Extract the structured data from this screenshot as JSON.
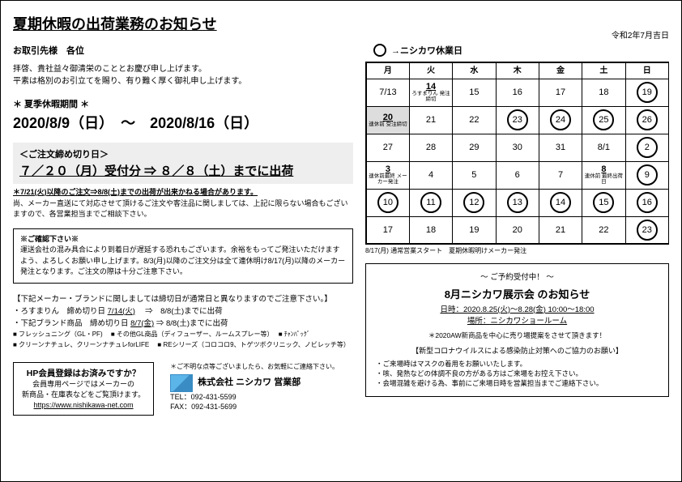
{
  "header": {
    "title": "夏期休暇の出荷業務のお知らせ",
    "date_top": "令和2年7月吉日"
  },
  "left": {
    "addressee": "お取引先様　各位",
    "greeting_l1": "拝啓、貴社益々御清栄のこととお慶び申し上げます。",
    "greeting_l2": "平素は格別のお引立てを賜り、有り難く厚く御礼申し上げます。",
    "closure_label": "＊  夏季休暇期間  ＊",
    "closure_range": "2020/8/9（日）　～　2020/8/16（日）",
    "deadline_title": "＜ご注文締め切り日＞",
    "deadline_line": "７／２０（月）受付分 ⇒ ８／８（土）までに出荷",
    "deadline_note_ul": "＊7/21(火)以降のご注文⇒8/8(土)までの出荷が出来かねる場合があります。",
    "deadline_note_rest": "尚、メーカー直送にて対応させて頂けるご注文や客注品に関しましては、上記に限らない場合もございますので、各営業担当までご相談下さい。",
    "confirm_title": "※ご確認下さい※",
    "confirm_body": "運送会社の混み具合により到着日が遅延する恐れもございます。余裕をもってご発注いただけますよう、よろしくお願い申し上げます。8/3(月)以降のご注文分は全て連休明け8/17(月)以降のメーカー発注となります。ご注文の際は十分ご注意下さい。",
    "brand_lead": "【下記メーカー・ブランドに関しましては締切日が通常日と異なりますのでご注意下さい。】",
    "brand_l1_a": "・ろすまりん　締め切り日 ",
    "brand_l1_b": "7/14(火)",
    "brand_l1_c": "　⇒　8/8(土)までに出荷",
    "brand_l2_a": "・下記ブランド商品　締め切り日 ",
    "brand_l2_b": "8/7(金)",
    "brand_l2_c": " ⇒ 8/8(土)までに出荷",
    "brand_s1": "■ フレッシュニング（GL・PF)　 ■ その他GL商品（ディフューザー、ルームスプレー等）　 ■ ﾁｬﾝﾊﾟｯｸﾞ",
    "brand_s2": "■ クリーンナチュレ、クリーンナチュレforLIFE　 ■ REシリーズ（コロコロ9、トゲツボクリニック、ノビレッチ等）",
    "hp_title": "HP会員登録はお済みですか？",
    "hp_body1": "会員専用ページではメーカーの",
    "hp_body2": "新商品・在庫表などをご覧頂けます。",
    "hp_url": "https://www.nishikawa-net.com",
    "sign_note": "＊ご不明な点等ございましたら、お気軽にご連絡下さい。",
    "sign_company": "株式会社 ニシカワ 営業部",
    "sign_tel": "TEL：092-431-5599",
    "sign_fax": "FAX：092-431-5699"
  },
  "right": {
    "legend": "→ニシカワ休業日",
    "weekdays": [
      "月",
      "火",
      "水",
      "木",
      "金",
      "土",
      "日"
    ],
    "rows": [
      [
        {
          "n": "7/13"
        },
        {
          "n": "14",
          "sub": "ろすまりん\n発注締切",
          "ul": true
        },
        {
          "n": "15"
        },
        {
          "n": "16"
        },
        {
          "n": "17"
        },
        {
          "n": "18"
        },
        {
          "n": "19",
          "circle": true
        }
      ],
      [
        {
          "n": "20",
          "sub": "連休前\n受注締切",
          "ul": true,
          "shade": true
        },
        {
          "n": "21"
        },
        {
          "n": "22"
        },
        {
          "n": "23",
          "circle": true
        },
        {
          "n": "24",
          "circle": true
        },
        {
          "n": "25",
          "circle": true
        },
        {
          "n": "26",
          "circle": true
        }
      ],
      [
        {
          "n": "27"
        },
        {
          "n": "28"
        },
        {
          "n": "29"
        },
        {
          "n": "30"
        },
        {
          "n": "31"
        },
        {
          "n": "8/1"
        },
        {
          "n": "2",
          "circle": true
        }
      ],
      [
        {
          "n": "3",
          "sub": "連休前最終\nメーカー発注",
          "ul": true
        },
        {
          "n": "4"
        },
        {
          "n": "5"
        },
        {
          "n": "6"
        },
        {
          "n": "7"
        },
        {
          "n": "8",
          "sub": "連休前\n最終出荷日",
          "ul": true
        },
        {
          "n": "9",
          "circle": true
        }
      ],
      [
        {
          "n": "10",
          "circle": true
        },
        {
          "n": "11",
          "circle": true
        },
        {
          "n": "12",
          "circle": true
        },
        {
          "n": "13",
          "circle": true
        },
        {
          "n": "14",
          "circle": true
        },
        {
          "n": "15",
          "circle": true
        },
        {
          "n": "16",
          "circle": true
        }
      ],
      [
        {
          "n": "17"
        },
        {
          "n": "18"
        },
        {
          "n": "19"
        },
        {
          "n": "20"
        },
        {
          "n": "21"
        },
        {
          "n": "22"
        },
        {
          "n": "23",
          "circle": true
        }
      ]
    ],
    "cal_note": "8/17(月) 通常営業スタート　夏期休暇明けメーカー発注",
    "event_head": "～ ご予約受付中！ ～",
    "event_title": "8月ニシカワ展示会 のお知らせ",
    "event_date": "日時：2020.8.25(火)～8.28(金) 10:00～18:00",
    "event_place": "場所：ニシカワショールーム",
    "event_note": "＊2020AW新商品を中心に売り場提案をさせて頂きます！",
    "covid_title": "【新型コロナウイルスによる感染防止対策へのご協力のお願い】",
    "covid_b1": "・ご来場時はマスクの着用をお願いいたします。",
    "covid_b2": "・咳、発熱などの体調不良の方がある方はご来場をお控え下さい。",
    "covid_b3": "・会場混雑を避ける為、事前にご来場日時を営業担当までご連絡下さい。"
  }
}
